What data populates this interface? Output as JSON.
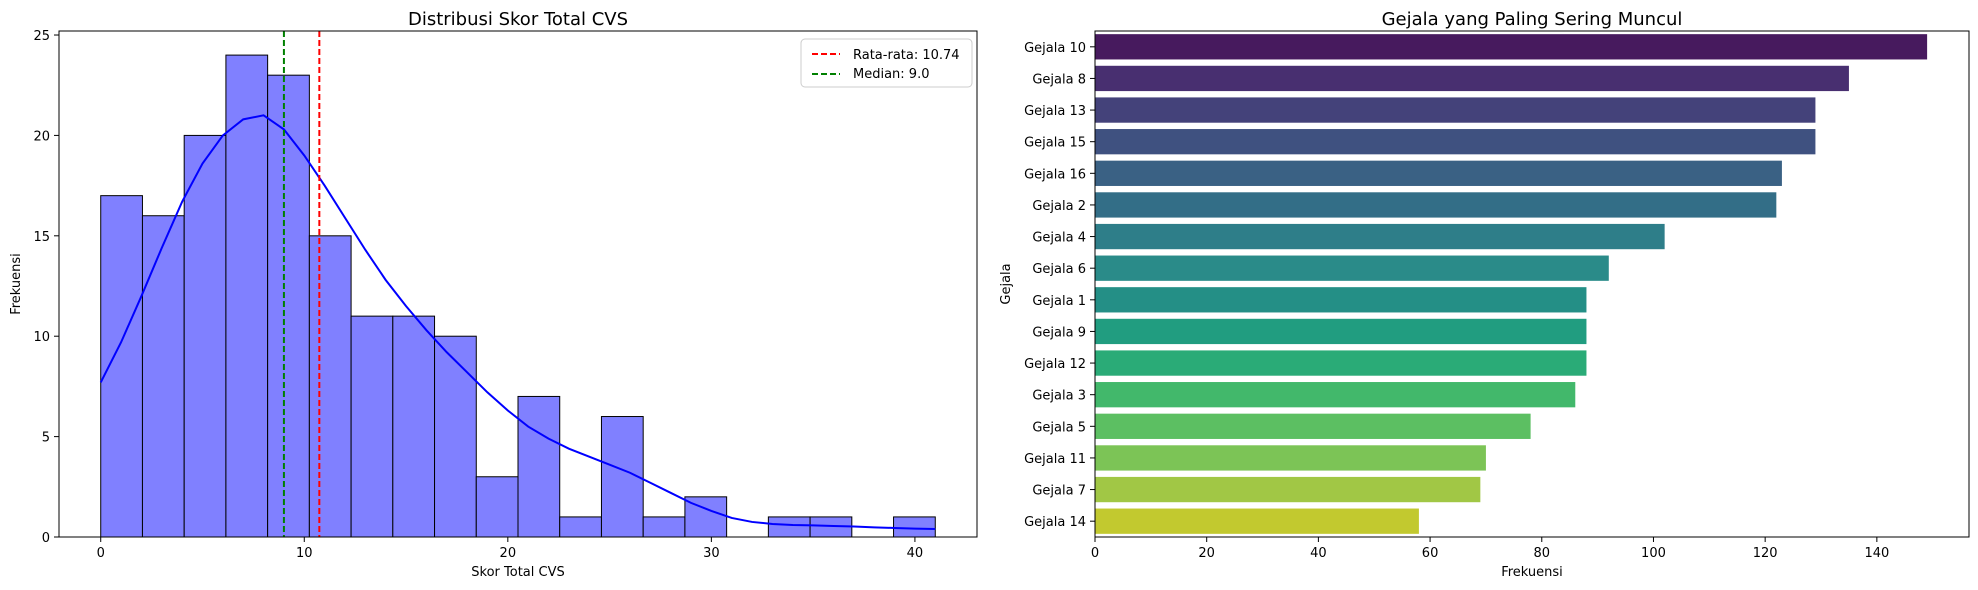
{
  "chart_data": [
    {
      "type": "bar",
      "subtype": "histogram",
      "title": "Distribusi Skor Total CVS",
      "xlabel": "Skor Total CVS",
      "ylabel": "Frekuensi",
      "xlim": [
        -2.05,
        43.05
      ],
      "ylim": [
        0,
        25.2
      ],
      "xticks": [
        0,
        10,
        20,
        30,
        40
      ],
      "yticks": [
        0,
        5,
        10,
        15,
        20,
        25
      ],
      "bin_edges": [
        0,
        2.05,
        4.1,
        6.15,
        8.2,
        10.25,
        12.3,
        14.35,
        16.4,
        18.45,
        20.5,
        22.55,
        24.6,
        26.65,
        28.7,
        30.75,
        32.8,
        34.85,
        36.9,
        38.95,
        41.0
      ],
      "values": [
        17,
        16,
        20,
        24,
        23,
        15,
        11,
        11,
        10,
        3,
        7,
        1,
        6,
        1,
        2,
        0,
        1,
        1,
        0,
        1
      ],
      "bar_color": "#8080ff",
      "kde": {
        "color": "#0000ff",
        "x": [
          0,
          1,
          2,
          3,
          4,
          5,
          6,
          7,
          8,
          9,
          10,
          11,
          12,
          13,
          14,
          15,
          16,
          17,
          18,
          19,
          20,
          21,
          22,
          23,
          24,
          25,
          26,
          27,
          28,
          29,
          30,
          31,
          32,
          33,
          34,
          35,
          36,
          37,
          38,
          39,
          40,
          41
        ],
        "y": [
          7.7,
          9.7,
          12.0,
          14.4,
          16.7,
          18.6,
          20.0,
          20.8,
          21.0,
          20.3,
          19.0,
          17.5,
          15.9,
          14.3,
          12.8,
          11.5,
          10.3,
          9.2,
          8.2,
          7.2,
          6.3,
          5.5,
          4.9,
          4.4,
          4.0,
          3.6,
          3.2,
          2.7,
          2.2,
          1.7,
          1.3,
          0.95,
          0.75,
          0.65,
          0.6,
          0.58,
          0.55,
          0.52,
          0.48,
          0.45,
          0.42,
          0.4
        ]
      },
      "vlines": [
        {
          "name": "Rata-rata: 10.74",
          "x": 10.74,
          "color": "#ff0000"
        },
        {
          "name": "Median: 9.0",
          "x": 9.0,
          "color": "#008000"
        }
      ],
      "legend": "top-right",
      "grid": false
    },
    {
      "type": "bar",
      "orientation": "horizontal",
      "title": "Gejala yang Paling Sering Muncul",
      "xlabel": "Frekuensi",
      "ylabel": "Gejala",
      "xlim": [
        0,
        156.5
      ],
      "xticks": [
        0,
        20,
        40,
        60,
        80,
        100,
        120,
        140
      ],
      "categories": [
        "Gejala 10",
        "Gejala 8",
        "Gejala 13",
        "Gejala 15",
        "Gejala 16",
        "Gejala 2",
        "Gejala 4",
        "Gejala 6",
        "Gejala 1",
        "Gejala 9",
        "Gejala 12",
        "Gejala 3",
        "Gejala 5",
        "Gejala 11",
        "Gejala 7",
        "Gejala 14"
      ],
      "values": [
        149,
        135,
        129,
        129,
        123,
        122,
        102,
        92,
        88,
        88,
        88,
        86,
        78,
        70,
        69,
        58
      ],
      "colors": [
        "#471a5e",
        "#482f70",
        "#44427a",
        "#3f5180",
        "#3a6184",
        "#336e87",
        "#2e7e89",
        "#2a8b89",
        "#248f86",
        "#219d80",
        "#2aab77",
        "#42b86b",
        "#5cbf62",
        "#7cc456",
        "#a1c745",
        "#c2c92f"
      ],
      "grid": false
    }
  ]
}
